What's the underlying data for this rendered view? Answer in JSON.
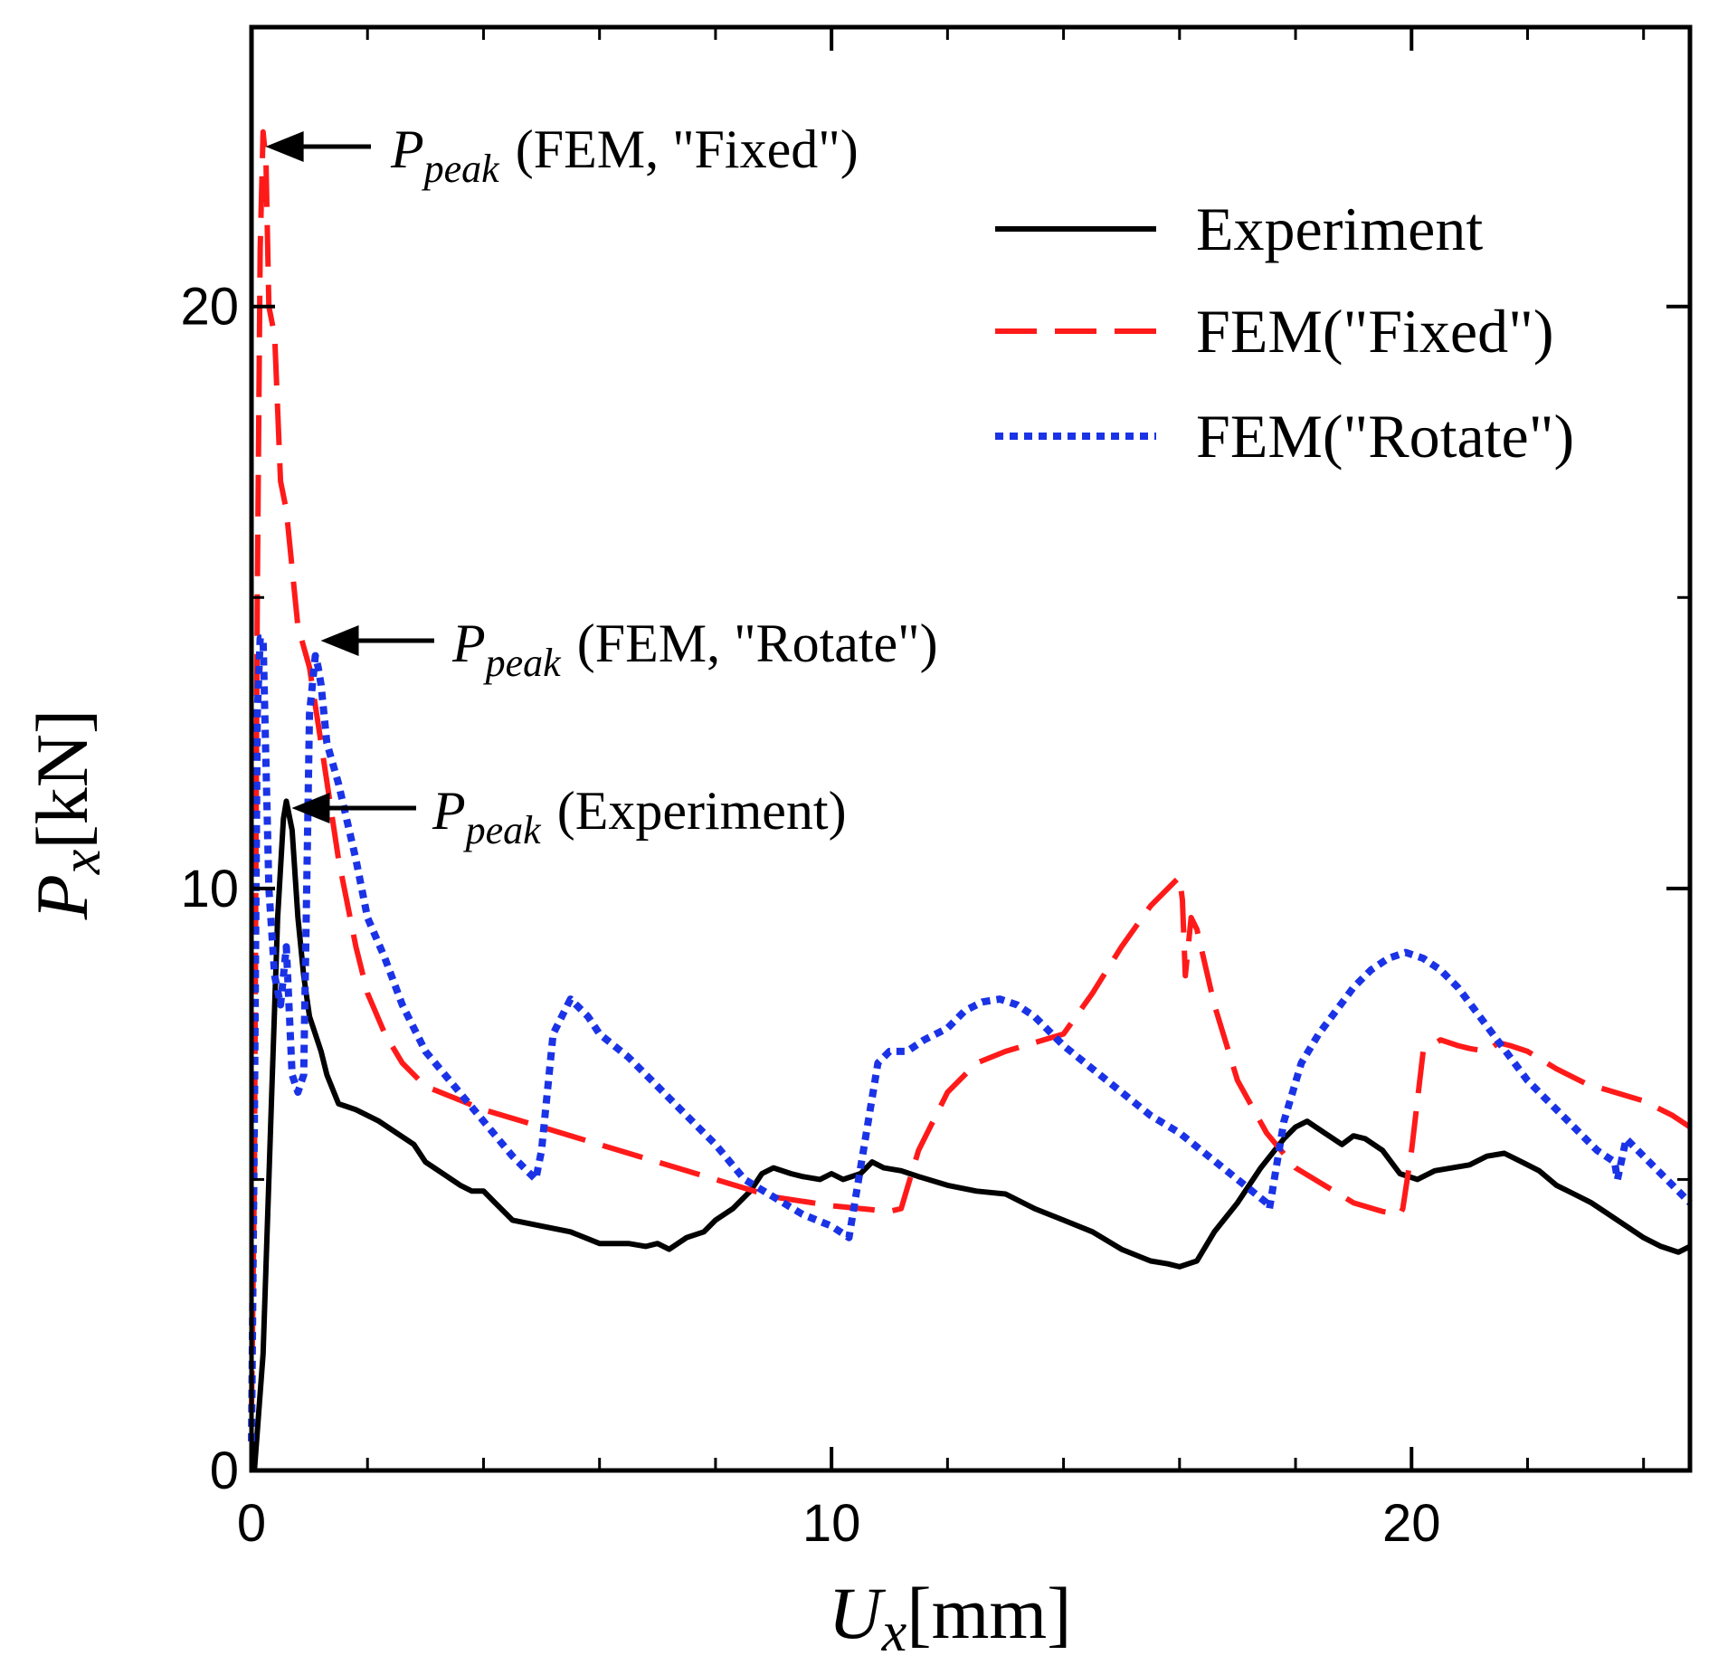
{
  "chart_data": {
    "type": "line",
    "xlabel": {
      "main": "U",
      "sub": "x",
      "unit": "[mm]"
    },
    "ylabel": {
      "main": "P",
      "sub": "x",
      "unit": "[kN]"
    },
    "xlim": [
      0,
      24.8
    ],
    "ylim": [
      0,
      24.8
    ],
    "xticks": [
      0,
      10,
      20
    ],
    "yticks": [
      0,
      10,
      20
    ],
    "xminor": [
      2,
      4,
      6,
      8,
      12,
      14,
      16,
      18,
      22,
      24
    ],
    "yminor": [
      5,
      15
    ],
    "grid": false,
    "legend_position": "top-right",
    "series": [
      {
        "name": "Experiment",
        "color": "#000000",
        "style": "solid",
        "x": [
          0.05,
          0.2,
          0.35,
          0.45,
          0.55,
          0.6,
          0.7,
          0.8,
          0.9,
          1.0,
          1.1,
          1.2,
          1.3,
          1.5,
          1.8,
          2.0,
          2.2,
          2.5,
          2.8,
          3.0,
          3.3,
          3.6,
          3.8,
          4.0,
          4.2,
          4.5,
          5.0,
          5.5,
          6.0,
          6.5,
          6.8,
          7.0,
          7.2,
          7.5,
          7.8,
          8.0,
          8.3,
          8.6,
          8.8,
          9.0,
          9.3,
          9.5,
          9.8,
          10.0,
          10.2,
          10.5,
          10.7,
          10.9,
          11.2,
          11.5,
          12.0,
          12.5,
          13.0,
          13.5,
          14.0,
          14.5,
          15.0,
          15.5,
          15.8,
          16.0,
          16.3,
          16.6,
          17.0,
          17.4,
          17.8,
          18.0,
          18.2,
          18.5,
          18.8,
          19.0,
          19.2,
          19.5,
          19.8,
          20.1,
          20.4,
          20.7,
          21.0,
          21.3,
          21.6,
          21.9,
          22.2,
          22.5,
          22.8,
          23.1,
          23.4,
          23.7,
          24.0,
          24.3,
          24.6,
          24.8
        ],
        "y": [
          0.0,
          2.0,
          6.5,
          9.5,
          11.2,
          11.5,
          11.0,
          9.5,
          8.5,
          7.8,
          7.5,
          7.2,
          6.8,
          6.3,
          6.2,
          6.1,
          6.0,
          5.8,
          5.6,
          5.3,
          5.1,
          4.9,
          4.8,
          4.8,
          4.6,
          4.3,
          4.2,
          4.1,
          3.9,
          3.9,
          3.85,
          3.9,
          3.8,
          4.0,
          4.1,
          4.3,
          4.5,
          4.8,
          5.1,
          5.2,
          5.1,
          5.05,
          5.0,
          5.1,
          5.0,
          5.1,
          5.3,
          5.2,
          5.15,
          5.05,
          4.9,
          4.8,
          4.75,
          4.5,
          4.3,
          4.1,
          3.8,
          3.6,
          3.55,
          3.5,
          3.6,
          4.1,
          4.6,
          5.2,
          5.7,
          5.9,
          6.0,
          5.8,
          5.6,
          5.75,
          5.7,
          5.5,
          5.1,
          5.0,
          5.15,
          5.2,
          5.25,
          5.4,
          5.45,
          5.3,
          5.15,
          4.9,
          4.75,
          4.6,
          4.4,
          4.2,
          4.0,
          3.85,
          3.75,
          3.85
        ]
      },
      {
        "name": "FEM(\"Fixed\")",
        "color": "#ff1a1a",
        "style": "dashed",
        "x": [
          0.0,
          0.05,
          0.1,
          0.15,
          0.2,
          0.25,
          0.3,
          0.4,
          0.5,
          0.6,
          0.8,
          1.0,
          1.2,
          1.5,
          1.8,
          2.0,
          2.3,
          2.6,
          3.0,
          3.5,
          4.0,
          5.0,
          6.0,
          7.0,
          8.0,
          9.0,
          10.0,
          10.5,
          11.0,
          11.2,
          11.5,
          12.0,
          12.5,
          13.0,
          13.5,
          14.0,
          14.5,
          15.0,
          15.5,
          15.9,
          16.0,
          16.05,
          16.1,
          16.2,
          16.3,
          16.6,
          17.0,
          17.5,
          18.0,
          18.5,
          19.0,
          19.5,
          19.8,
          19.85,
          20.0,
          20.2,
          20.5,
          20.8,
          21.0,
          21.3,
          21.5,
          21.7,
          22.0,
          22.5,
          23.0,
          23.5,
          24.0,
          24.5,
          24.8
        ],
        "y": [
          1.0,
          5.0,
          15.0,
          21.0,
          23.0,
          22.5,
          20.0,
          19.5,
          17.0,
          16.5,
          14.5,
          13.8,
          12.5,
          10.5,
          9.0,
          8.2,
          7.5,
          7.0,
          6.6,
          6.4,
          6.2,
          5.9,
          5.6,
          5.3,
          5.0,
          4.7,
          4.55,
          4.5,
          4.45,
          4.5,
          5.5,
          6.5,
          7.0,
          7.2,
          7.35,
          7.5,
          8.2,
          9.0,
          9.7,
          10.1,
          10.2,
          9.8,
          8.5,
          9.5,
          9.3,
          8.0,
          6.7,
          5.8,
          5.2,
          4.9,
          4.6,
          4.45,
          4.4,
          4.5,
          5.5,
          7.2,
          7.4,
          7.3,
          7.25,
          7.2,
          7.35,
          7.3,
          7.2,
          6.9,
          6.65,
          6.5,
          6.35,
          6.1,
          5.9
        ]
      },
      {
        "name": "FEM(\"Rotate\")",
        "color": "#1a33e6",
        "style": "dotted",
        "x": [
          0.0,
          0.05,
          0.1,
          0.15,
          0.2,
          0.3,
          0.4,
          0.5,
          0.6,
          0.7,
          0.8,
          0.9,
          1.0,
          1.1,
          1.15,
          1.2,
          1.3,
          1.5,
          1.8,
          2.0,
          2.3,
          2.6,
          3.0,
          3.5,
          4.0,
          4.5,
          4.9,
          5.0,
          5.2,
          5.5,
          5.8,
          6.0,
          6.5,
          7.0,
          7.5,
          8.0,
          8.5,
          9.0,
          9.5,
          10.0,
          10.3,
          10.5,
          10.8,
          11.0,
          11.3,
          11.6,
          12.0,
          12.3,
          12.6,
          12.9,
          13.2,
          13.5,
          14.0,
          14.5,
          15.0,
          15.5,
          16.0,
          16.5,
          17.0,
          17.5,
          17.55,
          17.8,
          18.1,
          18.4,
          18.7,
          19.0,
          19.3,
          19.6,
          19.9,
          20.2,
          20.5,
          20.8,
          21.1,
          21.4,
          21.7,
          22.0,
          22.3,
          22.6,
          22.9,
          23.2,
          23.5,
          23.55,
          23.7,
          24.0,
          24.3,
          24.6,
          24.8
        ],
        "y": [
          0.5,
          6.0,
          13.0,
          14.3,
          14.3,
          10.0,
          8.5,
          8.0,
          9.0,
          6.8,
          6.5,
          6.8,
          13.0,
          14.0,
          13.8,
          13.5,
          12.5,
          11.8,
          10.5,
          9.5,
          8.8,
          8.0,
          7.2,
          6.6,
          6.0,
          5.4,
          5.0,
          5.5,
          7.5,
          8.1,
          7.8,
          7.5,
          7.1,
          6.6,
          6.1,
          5.6,
          5.0,
          4.7,
          4.4,
          4.2,
          4.0,
          5.2,
          7.0,
          7.2,
          7.2,
          7.4,
          7.6,
          7.9,
          8.05,
          8.1,
          8.0,
          7.8,
          7.3,
          6.9,
          6.5,
          6.1,
          5.8,
          5.4,
          5.0,
          4.6,
          4.5,
          6.0,
          7.0,
          7.5,
          7.9,
          8.3,
          8.6,
          8.8,
          8.9,
          8.8,
          8.6,
          8.3,
          7.9,
          7.5,
          7.1,
          6.7,
          6.4,
          6.1,
          5.8,
          5.5,
          5.3,
          5.0,
          5.7,
          5.4,
          5.1,
          4.8,
          4.6
        ]
      }
    ],
    "legend": {
      "items": [
        {
          "label": "Experiment",
          "color": "#000000",
          "style": "solid"
        },
        {
          "label": "FEM(\"Fixed\")",
          "color": "#ff1a1a",
          "style": "dashed"
        },
        {
          "label": "FEM(\"Rotate\")",
          "color": "#1a33e6",
          "style": "dotted"
        }
      ]
    },
    "annotations": [
      {
        "symbol": "P",
        "subscript": "peak",
        "text": "(FEM, \"Fixed\")",
        "point_x": 0.15,
        "point_y": 22.9
      },
      {
        "symbol": "P",
        "subscript": "peak",
        "text": "(FEM, \"Rotate\")",
        "point_x": 1.1,
        "point_y": 14.3
      },
      {
        "symbol": "P",
        "subscript": "peak",
        "text": "(Experiment)",
        "point_x": 0.6,
        "point_y": 11.5
      }
    ]
  }
}
